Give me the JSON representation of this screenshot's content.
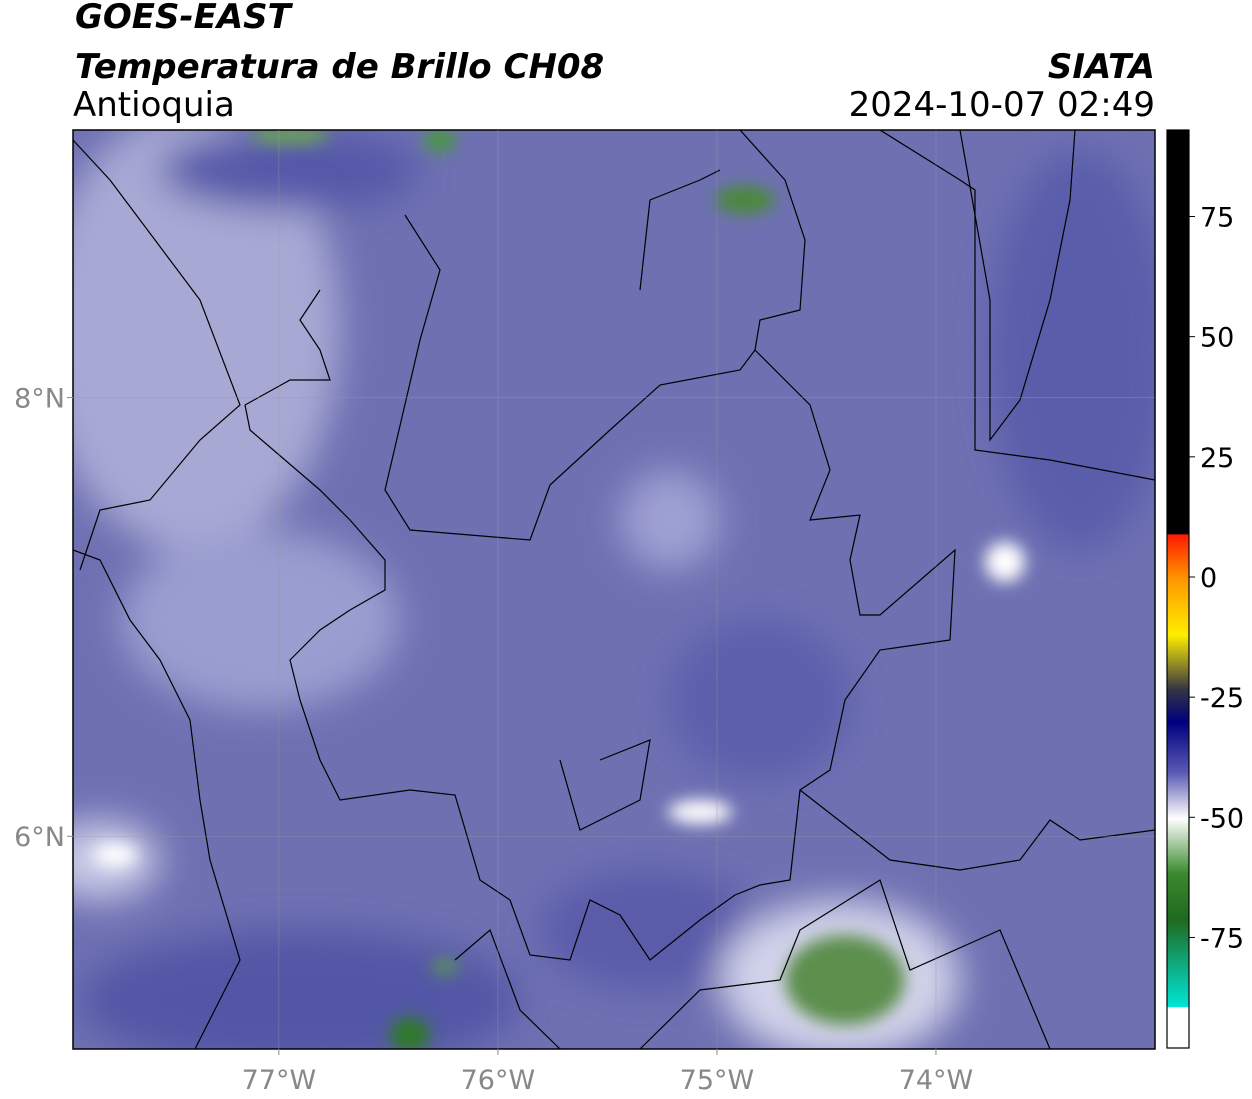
{
  "header": {
    "title": "GOES-EAST",
    "subtitle": "Temperatura de Brillo CH08",
    "region": "Antioquia",
    "source": "SIATA",
    "datetime": "2024-10-07 02:49"
  },
  "map": {
    "lon_range": [
      -77.94,
      -73.0
    ],
    "lat_range": [
      5.03,
      9.22
    ],
    "lon_ticks": [
      {
        "value": -77,
        "label": "77°W"
      },
      {
        "value": -76,
        "label": "76°W"
      },
      {
        "value": -75,
        "label": "75°W"
      },
      {
        "value": -74,
        "label": "74°W"
      }
    ],
    "lat_ticks": [
      {
        "value": 8,
        "label": "8°N"
      },
      {
        "value": 6,
        "label": "6°N"
      }
    ]
  },
  "colorbar": {
    "range": [
      -98,
      93
    ],
    "ticks": [
      75,
      50,
      25,
      0,
      -25,
      -50,
      -75
    ]
  }
}
